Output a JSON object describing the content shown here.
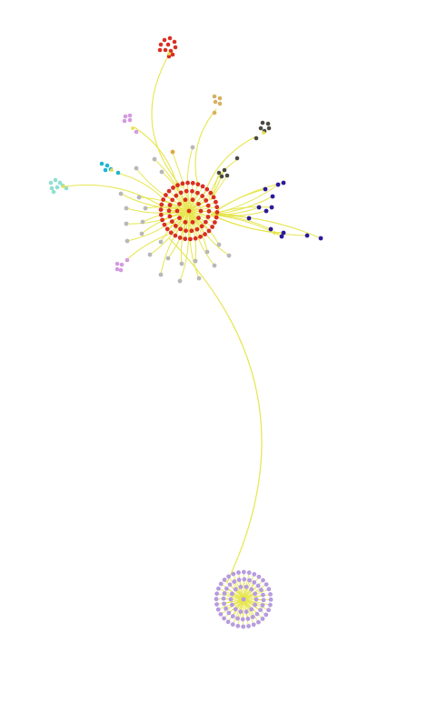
{
  "graph": {
    "edge_color": "#e6e64f",
    "colors": {
      "red": "#d93020",
      "grey": "#b8b8b8",
      "navy": "#2a1a9c",
      "lavender": "#b79be0",
      "pink": "#d49ae0",
      "cyan": "#1fb5d0",
      "aqua": "#8ee0d2",
      "orange": "#e0a840",
      "gold": "#d8b060",
      "darkgrey": "#4a4a40",
      "olive": "#8a8a40"
    },
    "clusters": [
      {
        "id": "main-hub",
        "color": "red"
      },
      {
        "id": "lower-hub",
        "color": "lavender"
      },
      {
        "id": "top-red-cluster",
        "color": "red"
      },
      {
        "id": "right-navy-branch",
        "color": "navy"
      },
      {
        "id": "left-aqua-cluster",
        "color": "aqua"
      },
      {
        "id": "left-cyan-cluster",
        "color": "cyan"
      },
      {
        "id": "upper-pink-cluster",
        "color": "pink"
      },
      {
        "id": "lower-pink-cluster",
        "color": "pink"
      },
      {
        "id": "gold-cluster",
        "color": "gold"
      },
      {
        "id": "dark-cluster",
        "color": "darkgrey"
      },
      {
        "id": "grey-satellites",
        "color": "grey"
      }
    ]
  }
}
